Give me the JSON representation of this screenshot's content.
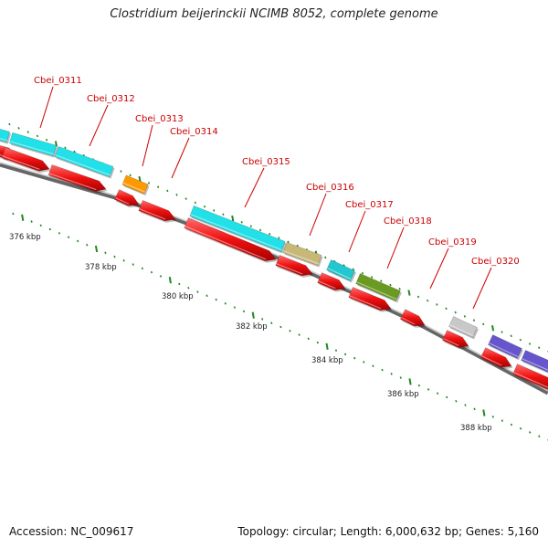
{
  "title": "Clostridium beijerinckii NCIMB 8052, complete genome",
  "footer": {
    "accession": "Accession: NC_009617",
    "topology": "Topology: circular; Length: 6,000,632 bp; Genes: 5,160"
  },
  "colors": {
    "cds": "#ee1111",
    "backbone": "#888888",
    "tick": "#228822",
    "label": "#cc0000"
  },
  "gene_labels": [
    {
      "id": "cbei-0311",
      "text": "Cbei_0311"
    },
    {
      "id": "cbei-0312",
      "text": "Cbei_0312"
    },
    {
      "id": "cbei-0313",
      "text": "Cbei_0313"
    },
    {
      "id": "cbei-0314",
      "text": "Cbei_0314"
    },
    {
      "id": "cbei-0315",
      "text": "Cbei_0315"
    },
    {
      "id": "cbei-0316",
      "text": "Cbei_0316"
    },
    {
      "id": "cbei-0317",
      "text": "Cbei_0317"
    },
    {
      "id": "cbei-0318",
      "text": "Cbei_0318"
    },
    {
      "id": "cbei-0319",
      "text": "Cbei_0319"
    },
    {
      "id": "cbei-0320",
      "text": "Cbei_0320"
    }
  ],
  "scale_labels": [
    "376 kbp",
    "378 kbp",
    "380 kbp",
    "382 kbp",
    "384 kbp",
    "386 kbp",
    "388 kbp"
  ],
  "feature_colors": {
    "cyan": "#22e0e8",
    "orange": "#ff9900",
    "khaki": "#c8b878",
    "teal": "#20c8d0",
    "olive": "#6a9a20",
    "gray": "#c8c8c8",
    "purple": "#6655cc"
  }
}
